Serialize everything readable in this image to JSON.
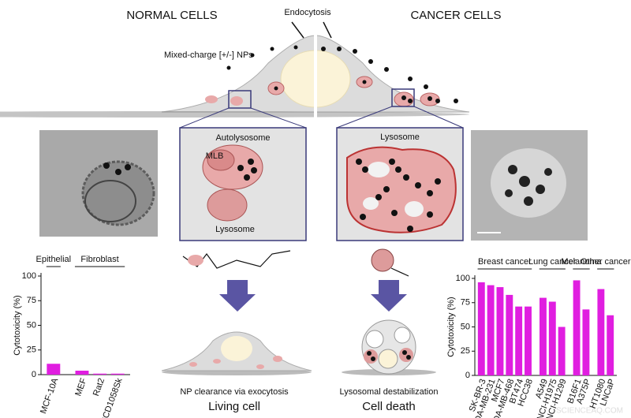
{
  "header": {
    "left_title": "NORMAL CELLS",
    "right_title": "CANCER CELLS"
  },
  "top_diagram": {
    "endocytosis": "Endocytosis",
    "nps": "Mixed-charge [+/-] NPs"
  },
  "left_inset": {
    "title": "Autolysosome",
    "mlb": "MLB",
    "lysosome": "Lysosome"
  },
  "right_inset": {
    "title": "Lysosome"
  },
  "outcomes": {
    "left_caption": "NP clearance via exocytosis",
    "left_result": "Living cell",
    "right_caption": "Lysosomal destabilization",
    "right_result": "Cell death"
  },
  "watermark": "SCIENCEAQ.COM",
  "chart_data": [
    {
      "type": "bar",
      "y_label": "Cytotoxicity (%)",
      "color": "#e01ee0",
      "groups": [
        "Epithelial",
        "Fibroblast"
      ],
      "categories": [
        "MCF-10A",
        "MEF",
        "Rat2",
        "CCD1058Sk"
      ],
      "values": [
        11,
        4,
        1,
        1
      ],
      "ylim": [
        0,
        100
      ],
      "yticks": [
        0,
        25,
        50,
        75,
        100
      ]
    },
    {
      "type": "bar",
      "y_label": "Cytotoxicity (%)",
      "color": "#e01ee0",
      "groups": [
        "Breast cancer",
        "Lung cancer",
        "Melanoma",
        "Other cancer"
      ],
      "categories": [
        "SK-BR-3",
        "MDA-MB-231",
        "MCF7",
        "MDA-MB-468",
        "BT474",
        "HCC38",
        "A549",
        "NCI-H1975",
        "NCI-H1299",
        "B16F1",
        "A375P",
        "HT1080",
        "LNCaP"
      ],
      "values": [
        96,
        93,
        91,
        83,
        71,
        71,
        80,
        76,
        50,
        98,
        68,
        89,
        62
      ],
      "ylim": [
        0,
        100
      ],
      "yticks": [
        0,
        25,
        50,
        75,
        100
      ]
    }
  ]
}
